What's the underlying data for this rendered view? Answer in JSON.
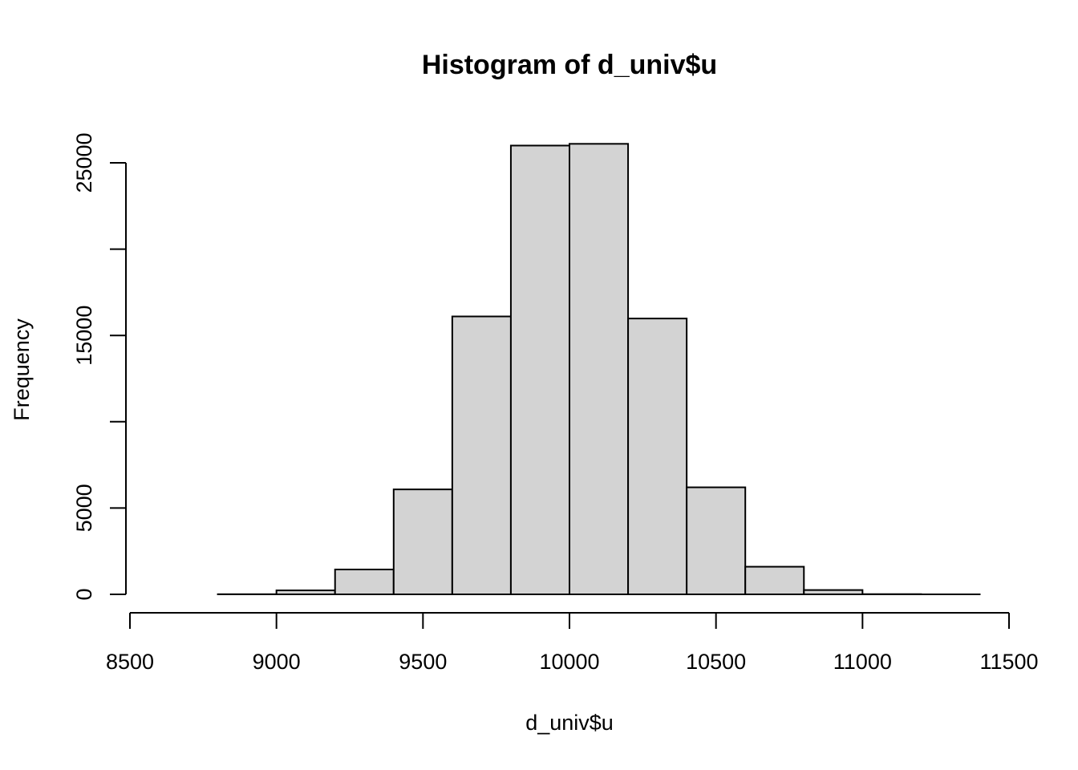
{
  "chart_data": {
    "type": "bar",
    "title": "Histogram of d_univ$u",
    "xlabel": "d_univ$u",
    "ylabel": "Frequency",
    "xlim": [
      8500,
      11500
    ],
    "ylim": [
      0,
      25000
    ],
    "x_ticks": [
      8500,
      9000,
      9500,
      10000,
      10500,
      11000,
      11500
    ],
    "y_ticks": [
      0,
      5000,
      10000,
      15000,
      20000,
      25000
    ],
    "y_tick_labels": [
      "0",
      "5000",
      "",
      "15000",
      "",
      "25000"
    ],
    "bins": [
      {
        "start": 8600,
        "end": 8800,
        "count": 0
      },
      {
        "start": 8800,
        "end": 9000,
        "count": 8
      },
      {
        "start": 9000,
        "end": 9200,
        "count": 230
      },
      {
        "start": 9200,
        "end": 9400,
        "count": 1440
      },
      {
        "start": 9400,
        "end": 9600,
        "count": 6080
      },
      {
        "start": 9600,
        "end": 9800,
        "count": 16100
      },
      {
        "start": 9800,
        "end": 10000,
        "count": 26000
      },
      {
        "start": 10000,
        "end": 10200,
        "count": 26100
      },
      {
        "start": 10200,
        "end": 10400,
        "count": 15980
      },
      {
        "start": 10400,
        "end": 10600,
        "count": 6200
      },
      {
        "start": 10600,
        "end": 10800,
        "count": 1600
      },
      {
        "start": 10800,
        "end": 11000,
        "count": 250
      },
      {
        "start": 11000,
        "end": 11200,
        "count": 12
      },
      {
        "start": 11200,
        "end": 11400,
        "count": 1
      }
    ],
    "bar_fill": "#d3d3d3",
    "bar_stroke": "#000000"
  }
}
